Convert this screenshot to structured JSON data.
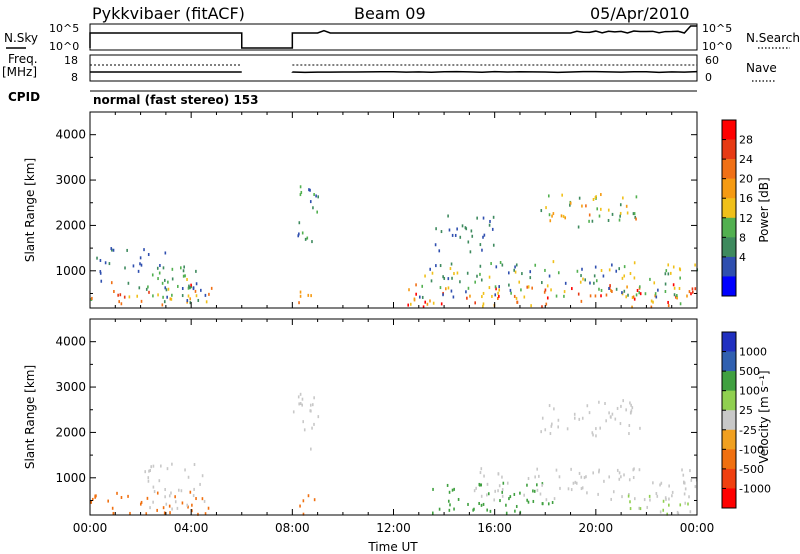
{
  "header": {
    "radar": "Pykkvibaer (fitACF)",
    "beam": "Beam 09",
    "date": "05/Apr/2010"
  },
  "param_panels": {
    "nsky": {
      "label": "N.Sky",
      "ticks": [
        "10^5",
        "10^0"
      ]
    },
    "nsearch": {
      "label": "N.Search",
      "ticks": [
        "10^5",
        "10^0"
      ]
    },
    "freq": {
      "label_line1": "Freq.",
      "label_line2": "[MHz]",
      "ticks": [
        "18",
        "8"
      ]
    },
    "nave": {
      "label": "Nave",
      "ticks": [
        "60",
        "0"
      ]
    },
    "cpid": {
      "label": "CPID",
      "value": "normal (fast stereo) 153"
    }
  },
  "colors": {
    "power": [
      "#0000ff",
      "#2f4faf",
      "#3e8a5e",
      "#52b050",
      "#f0c01a",
      "#f59a12",
      "#f07016",
      "#e73a14",
      "#ff0000"
    ],
    "velocity": [
      "#ff0000",
      "#f04010",
      "#f07010",
      "#f0a020",
      "#c8c8c8",
      "#90d050",
      "#40a040",
      "#3060b0",
      "#2030c0"
    ]
  },
  "chart_data": [
    {
      "type": "heatmap",
      "name": "power",
      "xlabel": "",
      "ylabel": "Slant Range [km]",
      "colorbar_label": "Power [dB]",
      "colorbar_ticks": [
        "28",
        "24",
        "20",
        "16",
        "12",
        "8",
        "4"
      ],
      "colorbar_range": [
        0,
        32
      ],
      "xlim": [
        0,
        24
      ],
      "ylim": [
        180,
        4500
      ],
      "yticks": [
        1000,
        2000,
        3000,
        4000
      ],
      "ytick_labels": [
        "1000",
        "2000",
        "3000",
        "4000"
      ],
      "scatter_blobs": [
        {
          "t": [
            0.0,
            4.8
          ],
          "r": [
            180,
            800
          ],
          "v": [
            4,
            30
          ]
        },
        {
          "t": [
            2.2,
            4.3
          ],
          "r": [
            300,
            1400
          ],
          "v": [
            4,
            14
          ]
        },
        {
          "t": [
            8.0,
            9.0
          ],
          "r": [
            1600,
            2900
          ],
          "v": [
            4,
            14
          ]
        },
        {
          "t": [
            8.2,
            9.0
          ],
          "r": [
            180,
            600
          ],
          "v": [
            14,
            26
          ]
        },
        {
          "t": [
            12.5,
            24.0
          ],
          "r": [
            180,
            700
          ],
          "v": [
            14,
            32
          ]
        },
        {
          "t": [
            13.0,
            24.0
          ],
          "r": [
            400,
            1200
          ],
          "v": [
            4,
            18
          ]
        },
        {
          "t": [
            13.5,
            16.0
          ],
          "r": [
            1400,
            2200
          ],
          "v": [
            4,
            10
          ]
        },
        {
          "t": [
            17.8,
            21.8
          ],
          "r": [
            1900,
            2700
          ],
          "v": [
            8,
            22
          ]
        },
        {
          "t": [
            0.2,
            2.4
          ],
          "r": [
            900,
            1500
          ],
          "v": [
            4,
            8
          ]
        }
      ]
    },
    {
      "type": "heatmap",
      "name": "velocity",
      "xlabel": "Time UT",
      "ylabel": "Slant Range [km]",
      "colorbar_label": "Velocity [m s⁻¹]",
      "colorbar_ticks": [
        "1000",
        "500",
        "100",
        "25",
        "-25",
        "-100",
        "-500",
        "-1000"
      ],
      "xlim": [
        0,
        24
      ],
      "ylim": [
        180,
        4500
      ],
      "xticks": [
        0,
        4,
        8,
        12,
        16,
        20,
        24
      ],
      "xtick_labels": [
        "00:00",
        "04:00",
        "08:00",
        "12:00",
        "16:00",
        "20:00",
        "00:00"
      ],
      "yticks": [
        1000,
        2000,
        3000,
        4000
      ],
      "ytick_labels": [
        "1000",
        "2000",
        "3000",
        "4000"
      ],
      "scatter_blobs": [
        {
          "t": [
            0.0,
            4.8
          ],
          "r": [
            180,
            700
          ],
          "v": [
            -500,
            -100
          ]
        },
        {
          "t": [
            2.0,
            4.5
          ],
          "r": [
            300,
            1300
          ],
          "v": [
            -25,
            25
          ]
        },
        {
          "t": [
            8.0,
            9.0
          ],
          "r": [
            1600,
            2900
          ],
          "v": [
            -25,
            25
          ]
        },
        {
          "t": [
            8.2,
            9.0
          ],
          "r": [
            180,
            600
          ],
          "v": [
            -500,
            -100
          ]
        },
        {
          "t": [
            13.5,
            18.5
          ],
          "r": [
            200,
            900
          ],
          "v": [
            100,
            500
          ]
        },
        {
          "t": [
            15.0,
            24.0
          ],
          "r": [
            500,
            1200
          ],
          "v": [
            -25,
            25
          ]
        },
        {
          "t": [
            17.8,
            21.8
          ],
          "r": [
            1900,
            2700
          ],
          "v": [
            -25,
            25
          ]
        },
        {
          "t": [
            21.0,
            24.0
          ],
          "r": [
            180,
            700
          ],
          "v": [
            -25,
            100
          ]
        }
      ]
    },
    {
      "type": "line",
      "name": "nsky_nsearch",
      "ylabel": "N.Sky",
      "xlim": [
        0,
        24
      ],
      "gaps": [
        [
          6.0,
          8.0
        ]
      ],
      "level": "high"
    },
    {
      "type": "line",
      "name": "freq_nave",
      "ylabel": "Freq. [MHz]",
      "xlim": [
        0,
        24
      ],
      "gaps": [
        [
          6.0,
          8.0
        ]
      ],
      "freq_value": 10,
      "nave_value": 30
    }
  ]
}
